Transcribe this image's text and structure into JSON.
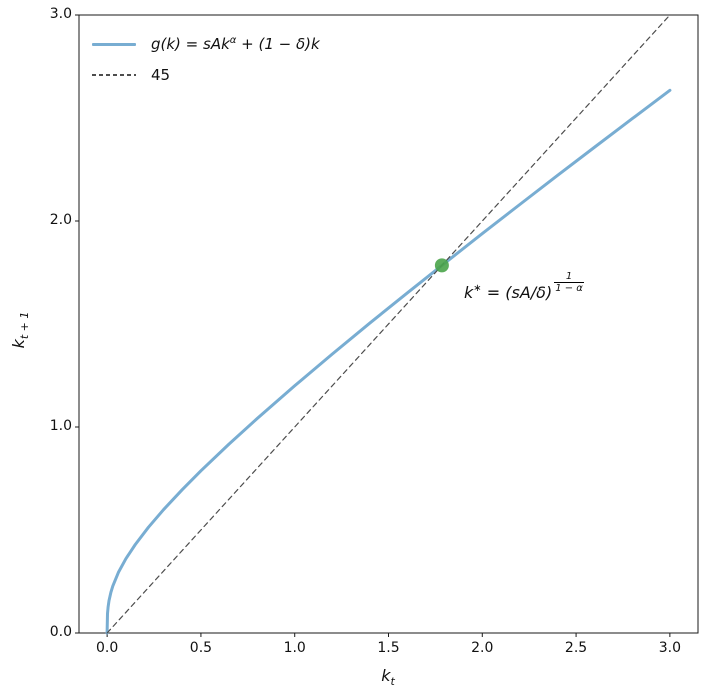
{
  "chart_data": {
    "type": "line",
    "title": "",
    "xlabel": {
      "base": "k",
      "sub": "t"
    },
    "ylabel": {
      "base": "k",
      "sub": "t + 1"
    },
    "xlim": [
      -0.15,
      3.15
    ],
    "ylim": [
      0,
      3.0
    ],
    "xticks": [
      "0.0",
      "0.5",
      "1.0",
      "1.5",
      "2.0",
      "2.5",
      "3.0"
    ],
    "xtick_values": [
      0,
      0.5,
      1.0,
      1.5,
      2.0,
      2.5,
      3.0
    ],
    "yticks": [
      "0.0",
      "1.0",
      "2.0",
      "3.0"
    ],
    "ytick_values": [
      0,
      1.0,
      2.0,
      3.0
    ],
    "grid": false,
    "legend_position": "upper-left-frameless",
    "series": [
      {
        "name": "g(k) = sAk^α + (1 − δ)k",
        "style": "solid",
        "color": "#78add2",
        "width": 3,
        "x": [
          0,
          0.002,
          0.005,
          0.01,
          0.02,
          0.03,
          0.06,
          0.1,
          0.15,
          0.22,
          0.3,
          0.4,
          0.5,
          0.65,
          0.8,
          1.0,
          1.2,
          1.4,
          1.6,
          1.7846,
          2.0,
          2.2,
          2.4,
          2.6,
          2.8,
          3.0
        ],
        "y": [
          0,
          0.0942,
          0.1255,
          0.1567,
          0.1976,
          0.2275,
          0.294,
          0.3607,
          0.4296,
          0.5129,
          0.5981,
          0.6958,
          0.7874,
          0.9173,
          1.0412,
          1.2,
          1.3537,
          1.5037,
          1.6509,
          1.7846,
          1.9387,
          2.0801,
          2.2202,
          2.3592,
          2.4971,
          2.6343
        ]
      },
      {
        "name": "45",
        "style": "dashed",
        "color": "#4d4d4d",
        "width": 1.2,
        "x": [
          0,
          3.0
        ],
        "y": [
          0,
          3.0
        ]
      }
    ],
    "fixed_point": {
      "x": 1.7846,
      "y": 1.7846,
      "marker_color": "#4aa44a",
      "marker_size": 7,
      "label": "k* = (sA/δ)^(1/(1−α))"
    }
  },
  "legend": {
    "entry1": {
      "pre": "g(k) = sAk",
      "sup": "α",
      "post": " + (1 − δ)k"
    },
    "entry2": "45"
  },
  "annotation": {
    "base": "k",
    "sup": "∗",
    "mid": " = (sA/δ)",
    "frac_num": "1",
    "frac_den": "1 − α"
  }
}
